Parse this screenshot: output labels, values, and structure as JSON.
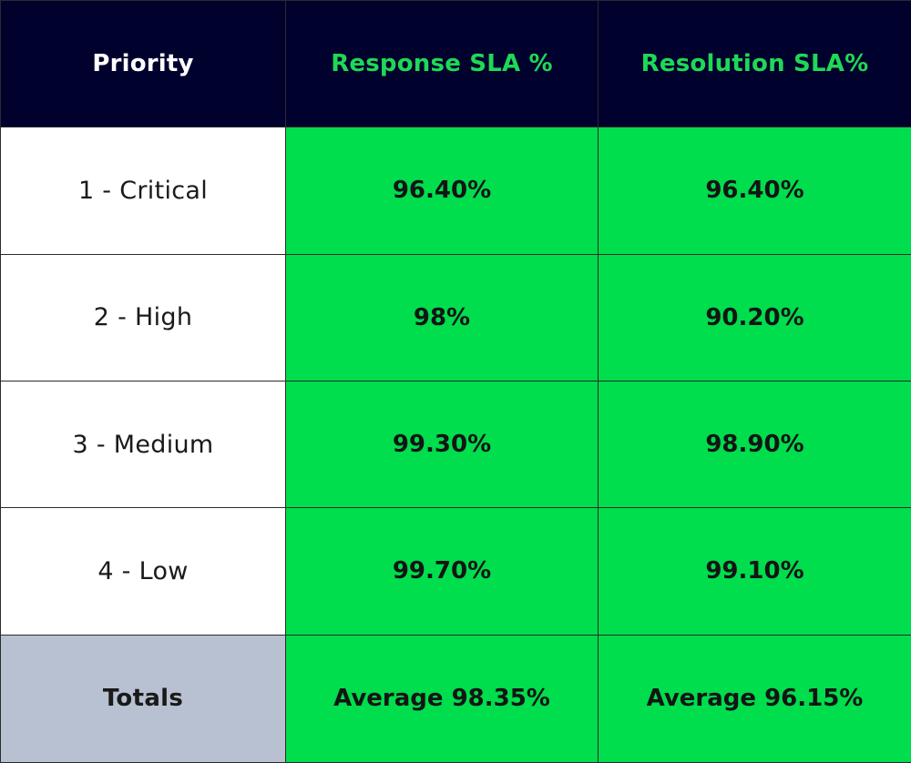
{
  "table": {
    "headers": [
      "Priority",
      "Response SLA %",
      "Resolution SLA%"
    ],
    "rows": [
      {
        "priority": "1 - Critical",
        "response": "96.40%",
        "resolution": "96.40%"
      },
      {
        "priority": "2 - High",
        "response": "98%",
        "resolution": "90.20%"
      },
      {
        "priority": "3 - Medium",
        "response": "99.30%",
        "resolution": "98.90%"
      },
      {
        "priority": "4 - Low",
        "response": "99.70%",
        "resolution": "99.10%"
      }
    ],
    "totals": {
      "label": "Totals",
      "response": "Average 98.35%",
      "resolution": "Average 96.15%"
    }
  },
  "colors": {
    "header_bg": "#01012e",
    "header_text_primary": "#ffffff",
    "header_text_accent": "#1fd855",
    "value_cell_bg": "#00dd4d",
    "totals_label_bg": "#b8c1d1"
  }
}
